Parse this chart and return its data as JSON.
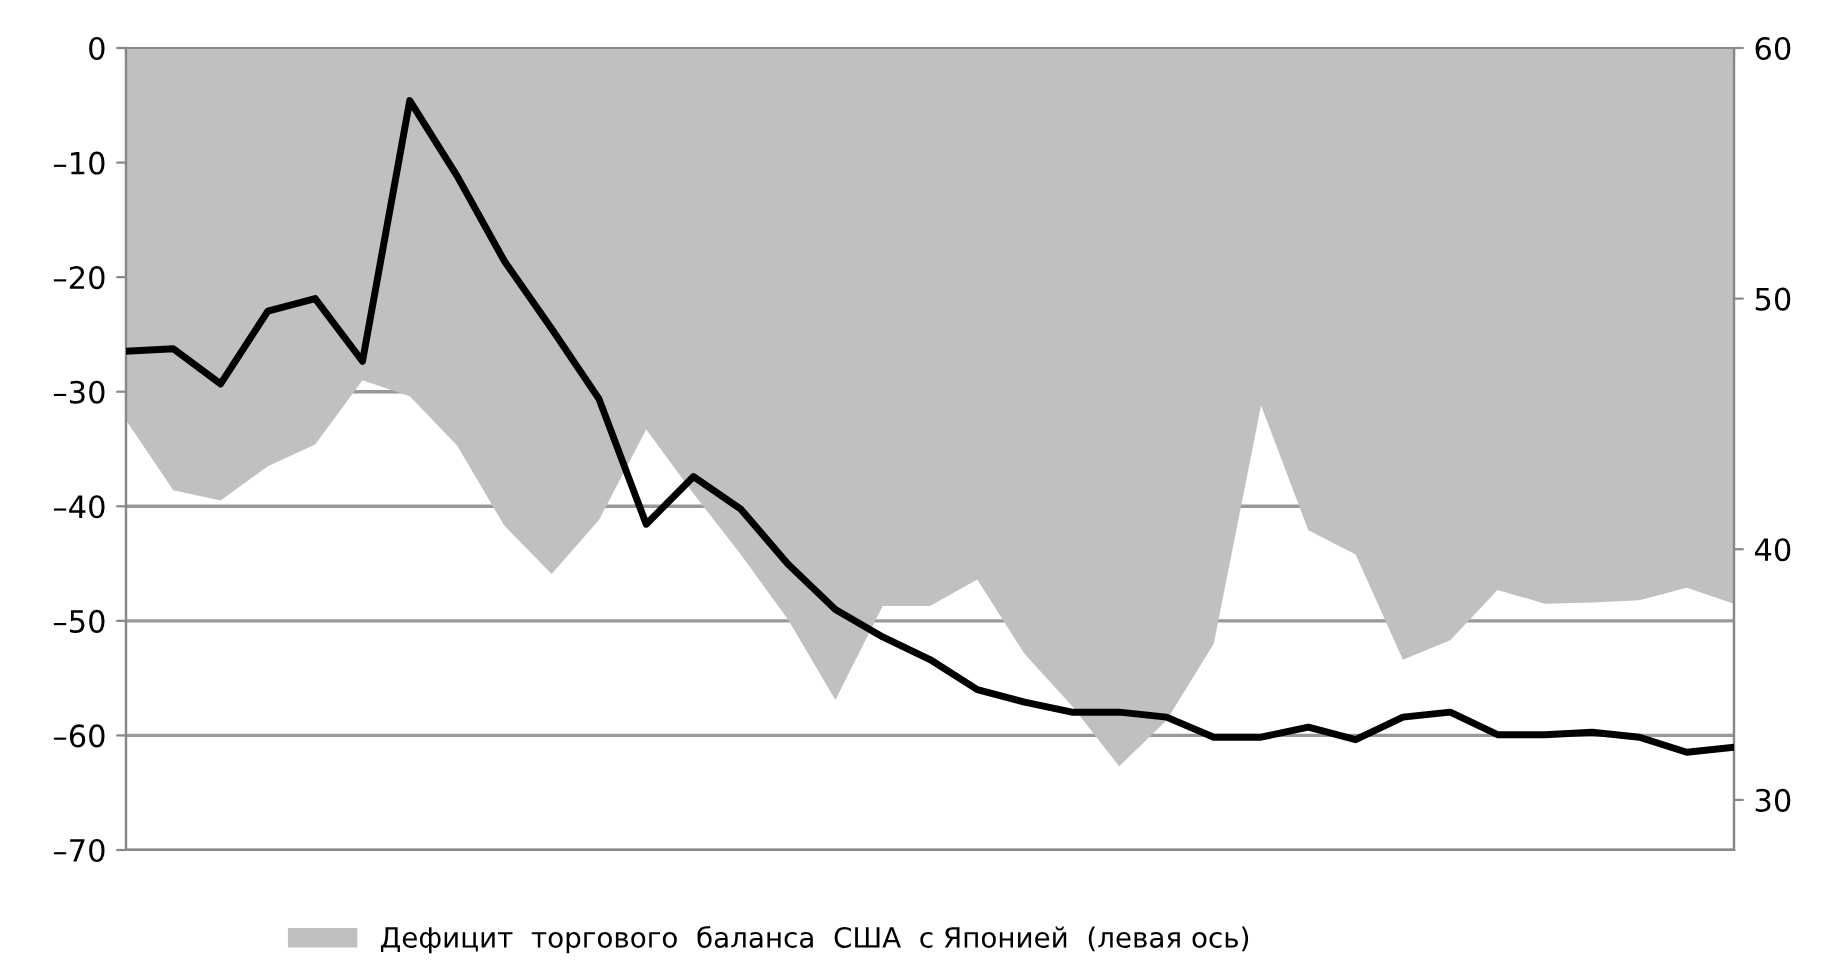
{
  "chart_data": {
    "type": "area",
    "categories": [
      null,
      null,
      null,
      null,
      null,
      null,
      null,
      null,
      null,
      null,
      null,
      null,
      null,
      null,
      null,
      null,
      null,
      null,
      null,
      null,
      null,
      null,
      null,
      null,
      null,
      null,
      null,
      null,
      null,
      null,
      null,
      null,
      null,
      null,
      null
    ],
    "series": [
      {
        "name": "Дефицит  торгового  баланса  США  с Японией  (левая ось)",
        "color": "#c0c0c0",
        "values": [
          -32.5,
          -38.6,
          -39.5,
          -36.5,
          -34.6,
          -29.0,
          -30.4,
          -34.7,
          -41.7,
          -45.9,
          -41.2,
          -33.3,
          -38.9,
          -44.2,
          -49.9,
          -56.9,
          -48.7,
          -48.7,
          -46.4,
          -52.9,
          -57.4,
          -62.7,
          -58.7,
          -52.0,
          -31.2,
          -42.1,
          -44.2,
          -53.4,
          -51.7,
          -47.3,
          -48.5,
          -48.4,
          -48.2,
          -47.1,
          -48.5
        ]
      },
      {
        "type": "line",
        "axis": "y2",
        "color": "#000000",
        "values": [
          47.9,
          48.0,
          46.6,
          49.5,
          50.0,
          47.5,
          57.9,
          54.9,
          51.5,
          48.8,
          46.0,
          41.0,
          42.9,
          41.6,
          39.4,
          37.6,
          36.5,
          35.6,
          34.4,
          33.9,
          33.5,
          33.5,
          33.3,
          32.5,
          32.5,
          32.9,
          32.4,
          33.3,
          33.5,
          32.6,
          32.6,
          32.7,
          32.5,
          31.9,
          32.1
        ]
      }
    ],
    "ylim": [
      -70,
      0
    ],
    "yticks": [
      0,
      {
        "value": -10,
        "label": "–10"
      },
      {
        "value": -20,
        "label": "–20"
      },
      {
        "value": -30,
        "label": "–30"
      },
      {
        "value": -40,
        "label": "–40"
      },
      {
        "value": -50,
        "label": "–50"
      },
      {
        "value": -60,
        "label": "–60"
      },
      {
        "value": -70,
        "label": "–70"
      }
    ],
    "y2lim": [
      28,
      60
    ],
    "y2ticks": [
      30,
      40,
      50,
      60
    ],
    "grid": "y",
    "legend": "bottom",
    "marker": "none",
    "line_style": "solid"
  }
}
